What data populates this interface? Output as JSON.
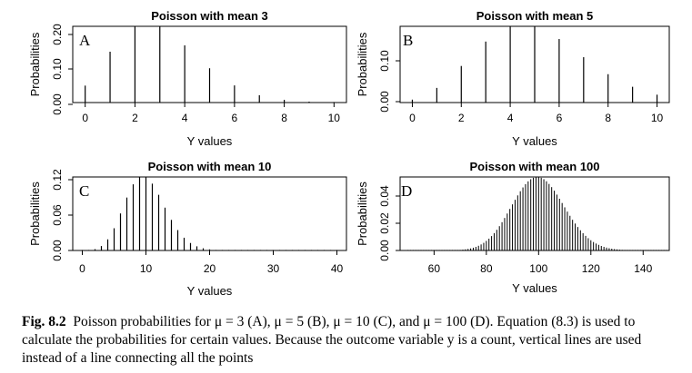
{
  "chart_data": [
    {
      "type": "bar",
      "panel_label": "A",
      "title": "Poisson with mean 3",
      "xlabel": "Y values",
      "ylabel": "Probabilities",
      "xticks": [
        0,
        2,
        4,
        6,
        8,
        10
      ],
      "yticks": [
        "0.00",
        "0.10",
        "0.20"
      ],
      "xlim": [
        -0.5,
        10.5
      ],
      "ylim": [
        0,
        0.224
      ],
      "x": [
        0,
        1,
        2,
        3,
        4,
        5,
        6,
        7,
        8,
        9,
        10
      ],
      "values": [
        0.0498,
        0.1494,
        0.224,
        0.224,
        0.168,
        0.1008,
        0.0504,
        0.0216,
        0.0081,
        0.0027,
        0.0008
      ]
    },
    {
      "type": "bar",
      "panel_label": "B",
      "title": "Poisson with mean 5",
      "xlabel": "Y values",
      "ylabel": "Probabilities",
      "xticks": [
        0,
        2,
        4,
        6,
        8,
        10
      ],
      "yticks": [
        "0.00",
        "0.10"
      ],
      "xlim": [
        -0.5,
        10.5
      ],
      "ylim": [
        0,
        0.1755
      ],
      "x": [
        0,
        1,
        2,
        3,
        4,
        5,
        6,
        7,
        8,
        9,
        10
      ],
      "values": [
        0.0067,
        0.0337,
        0.0842,
        0.1404,
        0.1755,
        0.1755,
        0.1462,
        0.1044,
        0.0653,
        0.0363,
        0.0181
      ]
    },
    {
      "type": "bar",
      "panel_label": "C",
      "title": "Poisson with mean 10",
      "xlabel": "Y values",
      "ylabel": "Probabilities",
      "xticks": [
        0,
        10,
        20,
        30,
        40
      ],
      "yticks": [
        "0.00",
        "0.06",
        "0.12"
      ],
      "xlim": [
        -1.5,
        41.5
      ],
      "ylim": [
        0,
        0.1251
      ],
      "distribution": "poisson",
      "mean": 10,
      "x_range": [
        0,
        40
      ]
    },
    {
      "type": "bar",
      "panel_label": "D",
      "title": "Poisson with mean 100",
      "xlabel": "Y values",
      "ylabel": "Probabilities",
      "xticks": [
        60,
        80,
        100,
        120,
        140
      ],
      "yticks": [
        "0.00",
        "0.02",
        "0.04"
      ],
      "xlim": [
        47,
        150
      ],
      "ylim": [
        0,
        0.0399
      ],
      "distribution": "poisson",
      "mean": 100,
      "x_range": [
        50,
        150
      ]
    }
  ],
  "caption": {
    "label": "Fig. 8.2",
    "text": "Poisson probabilities for μ = 3 (A), μ = 5 (B), μ = 10 (C), and μ = 100 (D). Equation (8.3) is used to calculate the probabilities for certain values. Because the outcome variable y is a count, vertical lines are used instead of a line connecting all the points"
  }
}
